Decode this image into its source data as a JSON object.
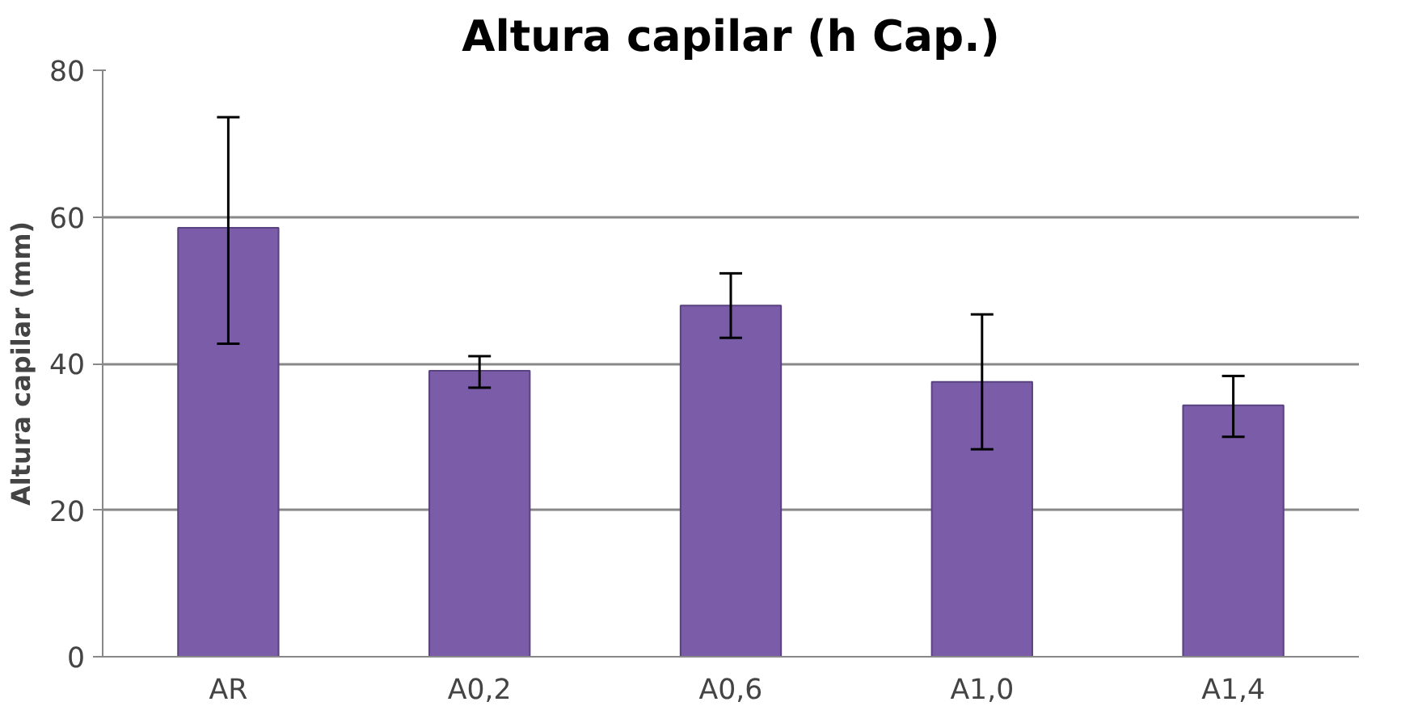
{
  "chart_data": {
    "type": "bar",
    "title": "Altura capilar (h Cap.)",
    "ylabel": "Altura capilar (mm)",
    "categories": [
      "AR",
      "A0,2",
      "A0,6",
      "A1,0",
      "A1,4"
    ],
    "values": [
      58.5,
      39.0,
      47.9,
      37.5,
      34.3
    ],
    "errors": [
      [
        42.7,
        73.6
      ],
      [
        36.7,
        41.0
      ],
      [
        43.5,
        52.3
      ],
      [
        28.3,
        46.7
      ],
      [
        30.0,
        38.3
      ]
    ],
    "color": "#7b5ca8",
    "ylim": [
      0,
      80
    ],
    "yticks": [
      0,
      20,
      40,
      60,
      80
    ],
    "grid": "y"
  }
}
